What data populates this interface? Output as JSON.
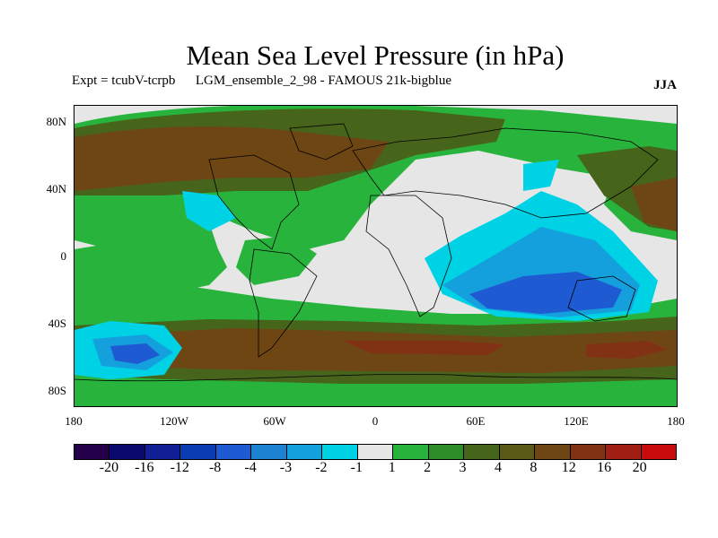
{
  "title": "Mean Sea Level Pressure (in hPa)",
  "subtitle_left": "Expt = tcubV-tcrpb      LGM_ensemble_2_98 - FAMOUS 21k-bigblue",
  "subtitle_right": "JJA",
  "lat_labels": [
    "80N",
    "40N",
    "0",
    "40S",
    "80S"
  ],
  "lon_labels": [
    "180",
    "120W",
    "60W",
    "0",
    "60E",
    "120E",
    "180"
  ],
  "colorbar": {
    "colors": [
      "#24004a",
      "#0a0a6e",
      "#101f96",
      "#0a3cb4",
      "#1e5ad2",
      "#1e82d2",
      "#14a0dc",
      "#00d2e6",
      "#e6e6e6",
      "#28b43c",
      "#2d8c28",
      "#46641a",
      "#5a5a14",
      "#6e4614",
      "#823214",
      "#a01e14",
      "#c80a0a"
    ],
    "labels": [
      "-20",
      "-16",
      "-12",
      "-8",
      "-4",
      "-3",
      "-2",
      "-1",
      "1",
      "2",
      "3",
      "4",
      "8",
      "12",
      "16",
      "20"
    ]
  }
}
